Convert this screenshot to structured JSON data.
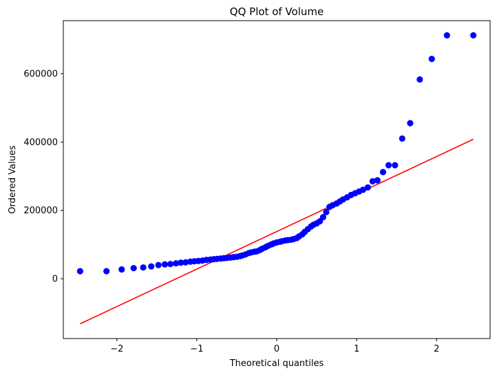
{
  "chart_data": {
    "type": "scatter",
    "title": "QQ Plot of Volume",
    "xlabel": "Theoretical quantiles",
    "ylabel": "Ordered Values",
    "xlim": [
      -2.67,
      2.67
    ],
    "ylim": [
      -175000,
      755000
    ],
    "xticks": [
      -2,
      -1,
      0,
      1,
      2
    ],
    "yticks": [
      0,
      200000,
      400000,
      600000
    ],
    "grid": false,
    "point_color": "#0000ff",
    "line_color": "#ff0000",
    "fit_line": {
      "x": [
        -2.46,
        2.46
      ],
      "y": [
        -132000,
        408000
      ]
    },
    "points": {
      "x": [
        -2.46,
        -2.13,
        -1.94,
        -1.79,
        -1.67,
        -1.57,
        -1.48,
        -1.4,
        -1.33,
        -1.26,
        -1.2,
        -1.14,
        -1.08,
        -1.03,
        -0.98,
        -0.93,
        -0.88,
        -0.83,
        -0.79,
        -0.75,
        -0.7,
        -0.66,
        -0.62,
        -0.58,
        -0.54,
        -0.5,
        -0.46,
        -0.43,
        -0.39,
        -0.35,
        -0.32,
        -0.28,
        -0.25,
        -0.21,
        -0.18,
        -0.14,
        -0.11,
        -0.07,
        -0.04,
        0.0,
        0.04,
        0.07,
        0.11,
        0.14,
        0.18,
        0.21,
        0.25,
        0.28,
        0.32,
        0.35,
        0.39,
        0.43,
        0.46,
        0.5,
        0.54,
        0.58,
        0.62,
        0.66,
        0.7,
        0.75,
        0.79,
        0.83,
        0.88,
        0.93,
        0.98,
        1.03,
        1.08,
        1.14,
        1.2,
        1.26,
        1.33,
        1.4,
        1.48,
        1.57,
        1.67,
        1.79,
        1.94,
        2.13,
        2.46
      ],
      "y": [
        22000,
        22000,
        27000,
        31000,
        33000,
        36000,
        40000,
        42000,
        43000,
        45000,
        47000,
        48000,
        50000,
        51000,
        52000,
        53000,
        55000,
        56000,
        57000,
        58000,
        59000,
        60000,
        61000,
        62000,
        63000,
        64000,
        66000,
        68000,
        71000,
        75000,
        77000,
        79000,
        80000,
        84000,
        88000,
        92000,
        96000,
        100000,
        103000,
        106000,
        108000,
        110000,
        112000,
        113000,
        114000,
        116000,
        119000,
        124000,
        130000,
        137000,
        145000,
        153000,
        158000,
        162000,
        168000,
        180000,
        195000,
        210000,
        215000,
        220000,
        226000,
        232000,
        238000,
        245000,
        250000,
        255000,
        260000,
        267000,
        285000,
        288000,
        312000,
        332000,
        332000,
        410000,
        455000,
        583000,
        643000,
        712000,
        712000
      ]
    }
  }
}
